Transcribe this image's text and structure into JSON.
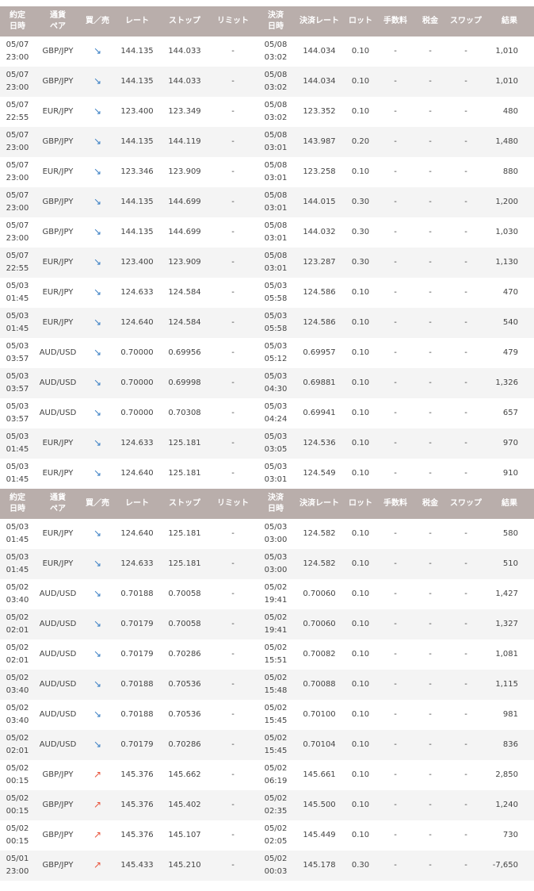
{
  "headers": [
    "約定\n日時",
    "通貨\nペア",
    "買／売",
    "レート",
    "ストップ",
    "リミット",
    "決済\n日時",
    "決済レート",
    "ロット",
    "手数料",
    "税金",
    "スワップ",
    "結果"
  ],
  "colors": {
    "header_bg": "#b9aeab",
    "sell_arrow": "#3a7fc4",
    "buy_arrow": "#e8553d"
  },
  "groups": [
    {
      "rows": [
        [
          "05/07\n23:00",
          "GBP/JPY",
          "sell",
          "144.135",
          "144.033",
          "-",
          "05/08\n03:02",
          "144.034",
          "0.10",
          "-",
          "-",
          "-",
          "1,010"
        ],
        [
          "05/07\n23:00",
          "GBP/JPY",
          "sell",
          "144.135",
          "144.033",
          "-",
          "05/08\n03:02",
          "144.034",
          "0.10",
          "-",
          "-",
          "-",
          "1,010"
        ],
        [
          "05/07\n22:55",
          "EUR/JPY",
          "sell",
          "123.400",
          "123.349",
          "-",
          "05/08\n03:02",
          "123.352",
          "0.10",
          "-",
          "-",
          "-",
          "480"
        ],
        [
          "05/07\n23:00",
          "GBP/JPY",
          "sell",
          "144.135",
          "144.119",
          "-",
          "05/08\n03:01",
          "143.987",
          "0.20",
          "-",
          "-",
          "-",
          "1,480"
        ],
        [
          "05/07\n23:00",
          "EUR/JPY",
          "sell",
          "123.346",
          "123.909",
          "-",
          "05/08\n03:01",
          "123.258",
          "0.10",
          "-",
          "-",
          "-",
          "880"
        ],
        [
          "05/07\n23:00",
          "GBP/JPY",
          "sell",
          "144.135",
          "144.699",
          "-",
          "05/08\n03:01",
          "144.015",
          "0.30",
          "-",
          "-",
          "-",
          "1,200"
        ],
        [
          "05/07\n23:00",
          "GBP/JPY",
          "sell",
          "144.135",
          "144.699",
          "-",
          "05/08\n03:01",
          "144.032",
          "0.30",
          "-",
          "-",
          "-",
          "1,030"
        ],
        [
          "05/07\n22:55",
          "EUR/JPY",
          "sell",
          "123.400",
          "123.909",
          "-",
          "05/08\n03:01",
          "123.287",
          "0.30",
          "-",
          "-",
          "-",
          "1,130"
        ],
        [
          "05/03\n01:45",
          "EUR/JPY",
          "sell",
          "124.633",
          "124.584",
          "-",
          "05/03\n05:58",
          "124.586",
          "0.10",
          "-",
          "-",
          "-",
          "470"
        ],
        [
          "05/03\n01:45",
          "EUR/JPY",
          "sell",
          "124.640",
          "124.584",
          "-",
          "05/03\n05:58",
          "124.586",
          "0.10",
          "-",
          "-",
          "-",
          "540"
        ],
        [
          "05/03\n03:57",
          "AUD/USD",
          "sell",
          "0.70000",
          "0.69956",
          "-",
          "05/03\n05:12",
          "0.69957",
          "0.10",
          "-",
          "-",
          "-",
          "479"
        ],
        [
          "05/03\n03:57",
          "AUD/USD",
          "sell",
          "0.70000",
          "0.69998",
          "-",
          "05/03\n04:30",
          "0.69881",
          "0.10",
          "-",
          "-",
          "-",
          "1,326"
        ],
        [
          "05/03\n03:57",
          "AUD/USD",
          "sell",
          "0.70000",
          "0.70308",
          "-",
          "05/03\n04:24",
          "0.69941",
          "0.10",
          "-",
          "-",
          "-",
          "657"
        ],
        [
          "05/03\n01:45",
          "EUR/JPY",
          "sell",
          "124.633",
          "125.181",
          "-",
          "05/03\n03:05",
          "124.536",
          "0.10",
          "-",
          "-",
          "-",
          "970"
        ],
        [
          "05/03\n01:45",
          "EUR/JPY",
          "sell",
          "124.640",
          "125.181",
          "-",
          "05/03\n03:01",
          "124.549",
          "0.10",
          "-",
          "-",
          "-",
          "910"
        ]
      ]
    },
    {
      "rows": [
        [
          "05/03\n01:45",
          "EUR/JPY",
          "sell",
          "124.640",
          "125.181",
          "-",
          "05/03\n03:00",
          "124.582",
          "0.10",
          "-",
          "-",
          "-",
          "580"
        ],
        [
          "05/03\n01:45",
          "EUR/JPY",
          "sell",
          "124.633",
          "125.181",
          "-",
          "05/03\n03:00",
          "124.582",
          "0.10",
          "-",
          "-",
          "-",
          "510"
        ],
        [
          "05/02\n03:40",
          "AUD/USD",
          "sell",
          "0.70188",
          "0.70058",
          "-",
          "05/02\n19:41",
          "0.70060",
          "0.10",
          "-",
          "-",
          "-",
          "1,427"
        ],
        [
          "05/02\n02:01",
          "AUD/USD",
          "sell",
          "0.70179",
          "0.70058",
          "-",
          "05/02\n19:41",
          "0.70060",
          "0.10",
          "-",
          "-",
          "-",
          "1,327"
        ],
        [
          "05/02\n02:01",
          "AUD/USD",
          "sell",
          "0.70179",
          "0.70286",
          "-",
          "05/02\n15:51",
          "0.70082",
          "0.10",
          "-",
          "-",
          "-",
          "1,081"
        ],
        [
          "05/02\n03:40",
          "AUD/USD",
          "sell",
          "0.70188",
          "0.70536",
          "-",
          "05/02\n15:48",
          "0.70088",
          "0.10",
          "-",
          "-",
          "-",
          "1,115"
        ],
        [
          "05/02\n03:40",
          "AUD/USD",
          "sell",
          "0.70188",
          "0.70536",
          "-",
          "05/02\n15:45",
          "0.70100",
          "0.10",
          "-",
          "-",
          "-",
          "981"
        ],
        [
          "05/02\n02:01",
          "AUD/USD",
          "sell",
          "0.70179",
          "0.70286",
          "-",
          "05/02\n15:45",
          "0.70104",
          "0.10",
          "-",
          "-",
          "-",
          "836"
        ],
        [
          "05/02\n00:15",
          "GBP/JPY",
          "buy",
          "145.376",
          "145.662",
          "-",
          "05/02\n06:19",
          "145.661",
          "0.10",
          "-",
          "-",
          "-",
          "2,850"
        ],
        [
          "05/02\n00:15",
          "GBP/JPY",
          "buy",
          "145.376",
          "145.402",
          "-",
          "05/02\n02:35",
          "145.500",
          "0.10",
          "-",
          "-",
          "-",
          "1,240"
        ],
        [
          "05/02\n00:15",
          "GBP/JPY",
          "buy",
          "145.376",
          "145.107",
          "-",
          "05/02\n02:05",
          "145.449",
          "0.10",
          "-",
          "-",
          "-",
          "730"
        ],
        [
          "05/01\n23:00",
          "GBP/JPY",
          "buy",
          "145.433",
          "145.210",
          "-",
          "05/02\n00:03",
          "145.178",
          "0.30",
          "-",
          "-",
          "-",
          "-7,650"
        ]
      ]
    }
  ]
}
